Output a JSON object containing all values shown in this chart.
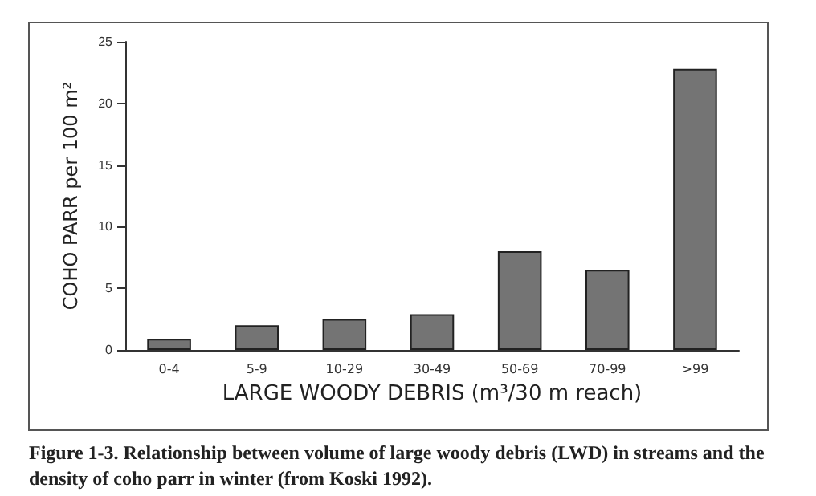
{
  "chart_data": {
    "type": "bar",
    "categories": [
      "0-4",
      "5-9",
      "10-29",
      "30-49",
      "50-69",
      "70-99",
      ">99"
    ],
    "values": [
      0.9,
      2.0,
      2.5,
      2.9,
      8.0,
      6.5,
      22.8
    ],
    "color": "#747474",
    "xlabel": "LARGE WOODY DEBRIS (m³/30 m reach)",
    "ylabel": "COHO PARR per 100 m²",
    "ylim": [
      0,
      25
    ],
    "yticks": [
      0,
      5,
      10,
      15,
      20,
      25
    ],
    "grid": false,
    "annotations": [
      "Figure 1-3. Relationship between volume of large woody debris (LWD) in streams and the density of coho parr in winter (from Koski 1992)."
    ]
  }
}
